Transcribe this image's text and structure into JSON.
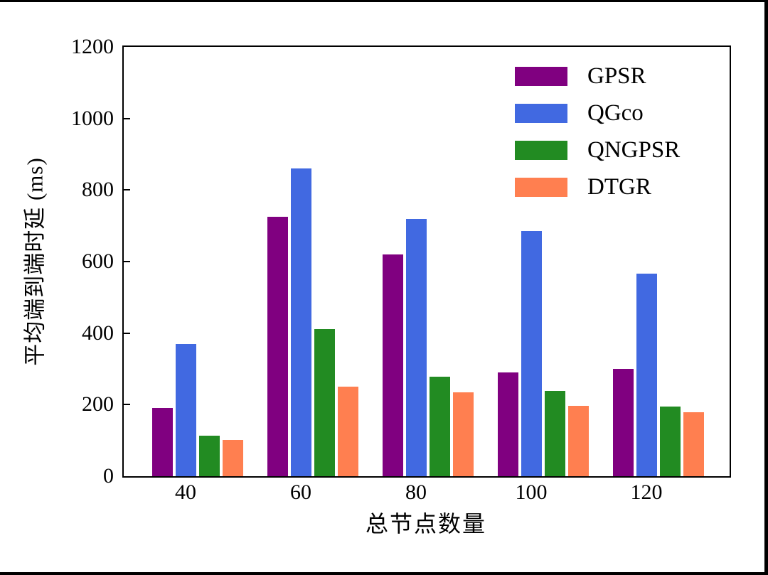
{
  "chart_data": {
    "type": "bar",
    "title": "",
    "xlabel": "总节点数量",
    "ylabel": "平均端到端时延 (ms)",
    "categories": [
      "40",
      "60",
      "80",
      "100",
      "120"
    ],
    "series": [
      {
        "name": "GPSR",
        "color": "#800080",
        "values": [
          190,
          725,
          620,
          290,
          300
        ]
      },
      {
        "name": "QGco",
        "color": "#4169E1",
        "values": [
          370,
          860,
          720,
          686,
          567
        ]
      },
      {
        "name": "QNGPSR",
        "color": "#228B22",
        "values": [
          113,
          412,
          278,
          238,
          195
        ]
      },
      {
        "name": "DTGR",
        "color": "#FF7F50",
        "values": [
          101,
          250,
          235,
          197,
          178
        ]
      }
    ],
    "ylim": [
      0,
      1200
    ],
    "yticks": [
      0,
      200,
      400,
      600,
      800,
      1000,
      1200
    ],
    "grid": false,
    "legend_position": "upper right",
    "frame_color": "#000000",
    "background_color": "#ffffff"
  }
}
